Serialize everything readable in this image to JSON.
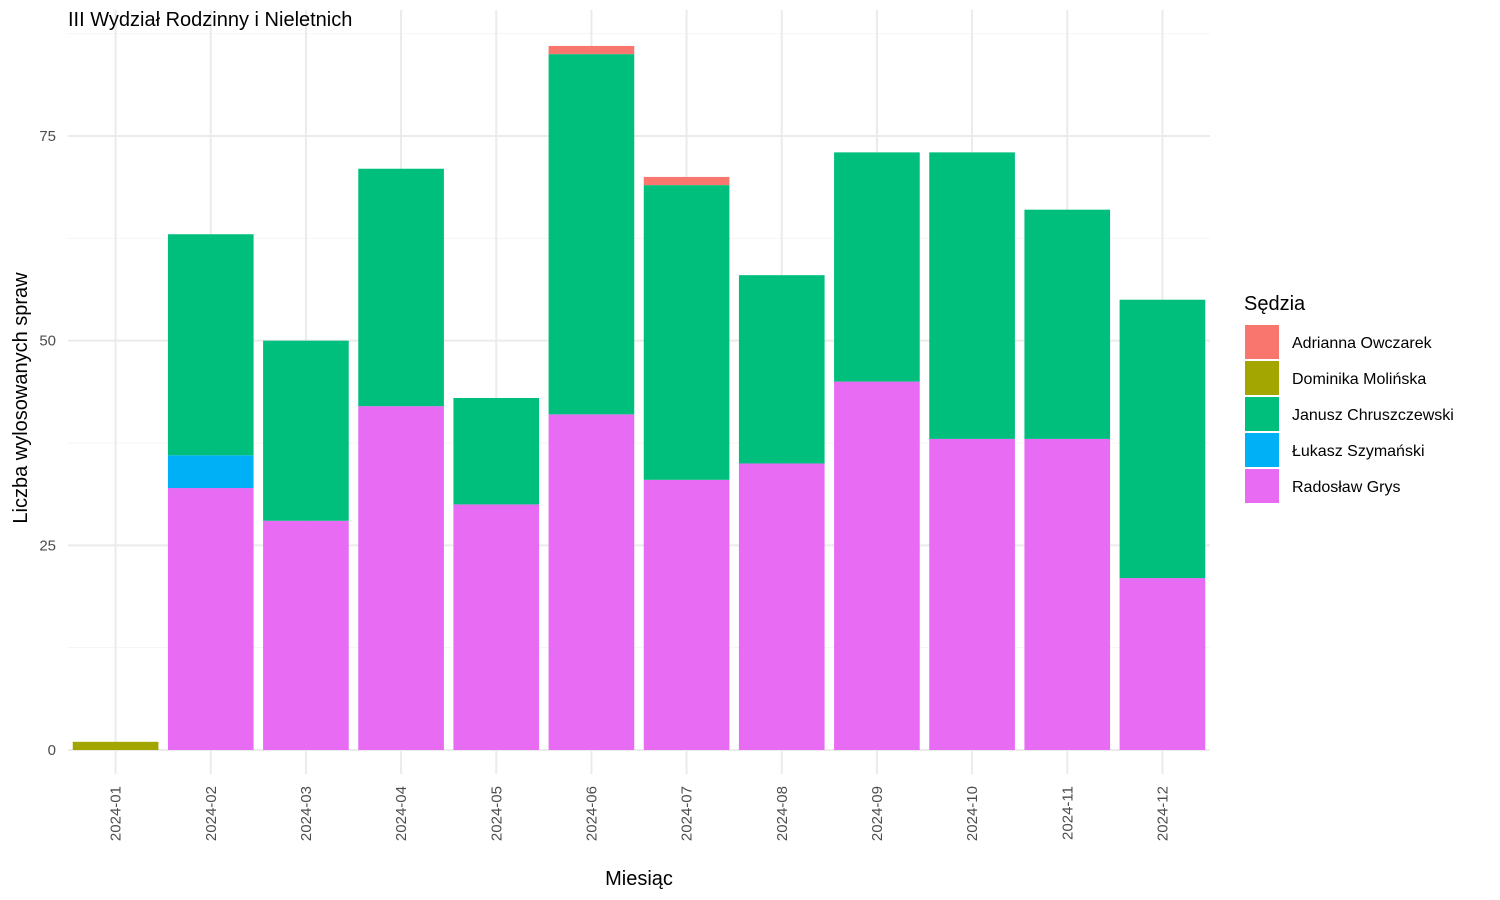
{
  "chart_data": {
    "type": "bar",
    "stacked": true,
    "title": "III Wydział Rodzinny i Nieletnich",
    "xlabel": "Miesiąc",
    "ylabel": "Liczba wylosowanych spraw",
    "ylim": [
      0,
      90
    ],
    "yticks": [
      0,
      25,
      50,
      75
    ],
    "grid": true,
    "legend_title": "Sędzia",
    "legend_position": "right",
    "categories": [
      "2024-01",
      "2024-02",
      "2024-03",
      "2024-04",
      "2024-05",
      "2024-06",
      "2024-07",
      "2024-08",
      "2024-09",
      "2024-10",
      "2024-11",
      "2024-12"
    ],
    "stack_order_bottom_to_top": [
      "Radosław Grys",
      "Łukasz Szymański",
      "Janusz Chruszczewski",
      "Dominika Molińska",
      "Adrianna Owczarek"
    ],
    "series": [
      {
        "name": "Adrianna Owczarek",
        "color": "#F8766D",
        "values": [
          0,
          0,
          0,
          0,
          0,
          1,
          1,
          0,
          0,
          0,
          0,
          0
        ]
      },
      {
        "name": "Dominika Molińska",
        "color": "#A3A500",
        "values": [
          1,
          0,
          0,
          0,
          0,
          0,
          0,
          0,
          0,
          0,
          0,
          0
        ]
      },
      {
        "name": "Janusz Chruszczewski",
        "color": "#00BF7D",
        "values": [
          0,
          27,
          22,
          29,
          13,
          44,
          36,
          23,
          28,
          35,
          28,
          34
        ]
      },
      {
        "name": "Łukasz Szymański",
        "color": "#00B0F6",
        "values": [
          0,
          4,
          0,
          0,
          0,
          0,
          0,
          0,
          0,
          0,
          0,
          0
        ]
      },
      {
        "name": "Radosław Grys",
        "color": "#E76BF3",
        "values": [
          0,
          32,
          28,
          42,
          30,
          41,
          33,
          35,
          45,
          38,
          38,
          21
        ]
      }
    ]
  }
}
